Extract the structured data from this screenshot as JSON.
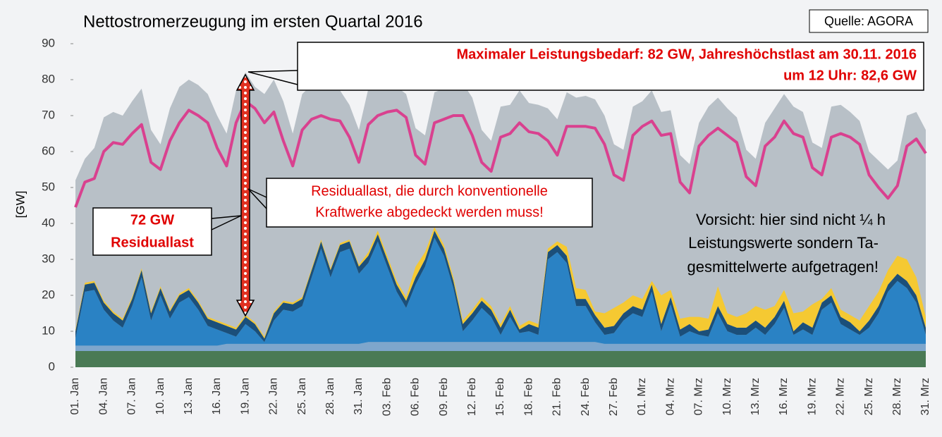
{
  "chart_data": {
    "type": "stacked_area",
    "title": "Nettostromerzeugung im ersten Quartal 2016",
    "source": "Quelle: AGORA",
    "y_label": "[GW]",
    "categories": [
      "01. Jan",
      null,
      null,
      "04. Jan",
      null,
      null,
      "07. Jan",
      null,
      null,
      "10. Jan",
      null,
      null,
      "13. Jan",
      null,
      null,
      "16. Jan",
      null,
      null,
      "19. Jan",
      null,
      null,
      "22. Jan",
      null,
      null,
      "25. Jan",
      null,
      null,
      "28. Jan",
      null,
      null,
      "31. Jan",
      null,
      null,
      "03. Feb",
      null,
      null,
      "06. Feb",
      null,
      null,
      "09. Feb",
      null,
      null,
      "12. Feb",
      null,
      null,
      "15. Feb",
      null,
      null,
      "18. Feb",
      null,
      null,
      "21. Feb",
      null,
      null,
      "24. Feb",
      null,
      null,
      "27. Feb",
      null,
      null,
      "01. Mrz",
      null,
      null,
      "04. Mrz",
      null,
      null,
      "07. Mrz",
      null,
      null,
      "10. Mrz",
      null,
      null,
      "13. Mrz",
      null,
      null,
      "16. Mrz",
      null,
      null,
      "19. Mrz",
      null,
      null,
      "22. Mrz",
      null,
      null,
      "25. Mrz",
      null,
      null,
      "28. Mrz",
      null,
      null,
      "31. Mrz"
    ],
    "load": {
      "color": "#b8c0c7",
      "values": [
        52,
        58,
        61,
        69.5,
        71,
        70,
        74,
        77.5,
        66,
        62,
        72,
        78,
        80,
        78.5,
        76,
        70,
        65,
        77,
        82,
        78,
        76,
        80,
        74,
        65,
        76,
        78.5,
        78,
        77.5,
        77,
        73,
        66,
        77.5,
        78.5,
        80.5,
        78,
        76,
        66.5,
        64.5,
        76.5,
        77.5,
        79,
        79,
        75,
        66,
        63,
        72.5,
        73,
        77,
        73.5,
        73,
        72,
        69,
        76.5,
        75,
        75.5,
        74.5,
        70,
        62,
        60.5,
        72.5,
        74,
        77,
        71,
        71.5,
        59,
        56.5,
        68,
        72.5,
        75,
        72,
        69.5,
        60.5,
        58,
        68,
        72,
        76,
        72.5,
        71,
        62.5,
        61,
        72.5,
        73,
        71,
        68.5,
        60,
        57.5,
        55,
        57.5,
        70,
        71,
        66
      ]
    },
    "series": [
      {
        "color": "#4a7a55",
        "values": [
          4.5,
          4.5,
          4.5,
          4.5,
          4.5,
          4.5,
          4.5,
          4.5,
          4.5,
          4.5,
          4.5,
          4.5,
          4.5,
          4.5,
          4.5,
          4.5,
          4.5,
          4.5,
          4.5,
          4.5,
          4.5,
          4.5,
          4.5,
          4.5,
          4.5,
          4.5,
          4.5,
          4.5,
          4.5,
          4.5,
          4.5,
          4.5,
          4.5,
          4.5,
          4.5,
          4.5,
          4.5,
          4.5,
          4.5,
          4.5,
          4.5,
          4.5,
          4.5,
          4.5,
          4.5,
          4.5,
          4.5,
          4.5,
          4.5,
          4.5,
          4.5,
          4.5,
          4.5,
          4.5,
          4.5,
          4.5,
          4.5,
          4.5,
          4.5,
          4.5,
          4.5,
          4.5,
          4.5,
          4.5,
          4.5,
          4.5,
          4.5,
          4.5,
          4.5,
          4.5,
          4.5,
          4.5,
          4.5,
          4.5,
          4.5,
          4.5,
          4.5,
          4.5,
          4.5,
          4.5,
          4.5,
          4.5,
          4.5,
          4.5,
          4.5,
          4.5,
          4.5,
          4.5,
          4.5,
          4.5,
          4.5
        ]
      },
      {
        "color": "#7ea6cc",
        "values": [
          1.5,
          1.5,
          1.5,
          1.5,
          1.5,
          1.5,
          1.5,
          1.5,
          1.5,
          1.5,
          1.5,
          1.5,
          1.5,
          1.5,
          1.5,
          1.5,
          2,
          2,
          2,
          2,
          2,
          2,
          2,
          2,
          2,
          2,
          2,
          2,
          2,
          2,
          2,
          2.5,
          2.5,
          2.5,
          2.5,
          2.5,
          2.5,
          2.5,
          2.5,
          2.5,
          2.5,
          2.5,
          2.5,
          2.5,
          2.5,
          2.5,
          2.5,
          2.5,
          2.5,
          2.5,
          2.5,
          2.5,
          2.5,
          2.5,
          2.5,
          2.5,
          2,
          2,
          2,
          2,
          2,
          2,
          2,
          2,
          2,
          2,
          2,
          2,
          2,
          2,
          2,
          2,
          2,
          2,
          2,
          2,
          2,
          2,
          2,
          2,
          2,
          2,
          2,
          2,
          2,
          2,
          2,
          2,
          2,
          2,
          2
        ]
      },
      {
        "color": "#2a82c4",
        "values": [
          2,
          15,
          15.5,
          10,
          7,
          5,
          11,
          19,
          7,
          14,
          7.5,
          12,
          13.5,
          10,
          5.5,
          4.5,
          3,
          2,
          5.5,
          3.5,
          0.5,
          6.5,
          9.5,
          9,
          10.5,
          18.5,
          26.5,
          18.5,
          25.5,
          26.5,
          19.5,
          22,
          28,
          21,
          14,
          9.5,
          16,
          21,
          29,
          24,
          15,
          3,
          6,
          9.5,
          7,
          2,
          7,
          2.5,
          3,
          2,
          23,
          25,
          22,
          10,
          10,
          5.5,
          2.5,
          3,
          6.5,
          8.5,
          7.5,
          14.5,
          3.5,
          11,
          2,
          3.5,
          2.5,
          2,
          8.5,
          3.5,
          2.5,
          2.5,
          4.5,
          2.5,
          5.5,
          10,
          2.5,
          4,
          2.5,
          9.5,
          11.5,
          5.5,
          4,
          2.5,
          4.5,
          8.5,
          14.5,
          17.5,
          15.5,
          11.5,
          2.5
        ]
      },
      {
        "color": "#1b4f7a",
        "values": [
          2,
          2,
          2,
          2,
          2,
          2,
          2,
          2,
          2,
          2,
          2,
          2,
          2,
          2,
          2,
          2,
          2,
          2,
          2,
          2,
          1,
          2,
          2,
          2,
          2,
          2,
          2,
          2,
          2,
          2,
          2,
          2,
          2,
          2,
          2,
          2,
          2,
          2,
          2,
          2,
          2,
          2,
          2,
          2,
          2,
          2,
          2,
          1,
          2,
          2,
          2,
          2,
          2,
          2,
          2,
          2,
          2,
          2,
          2,
          2,
          2,
          2,
          2,
          2,
          2,
          2,
          1,
          2,
          2,
          2,
          2,
          2,
          2,
          2,
          2,
          2,
          1,
          2,
          2,
          2,
          2,
          2,
          2,
          1,
          2,
          2,
          2,
          2,
          2,
          2,
          2
        ]
      },
      {
        "color": "#f5c932",
        "values": [
          0.5,
          0.5,
          0.5,
          0.5,
          0.5,
          0.5,
          0.5,
          0.5,
          0.5,
          0.5,
          0.5,
          0.5,
          0.5,
          0.5,
          0.5,
          0.5,
          0.5,
          0.5,
          0.5,
          0.5,
          0.5,
          0.5,
          0.5,
          0.5,
          0.5,
          0.5,
          0.5,
          0.5,
          0.5,
          0.5,
          0.5,
          1,
          1,
          1,
          1,
          1,
          3,
          2,
          1,
          1,
          1,
          1,
          1,
          1,
          1,
          1,
          1,
          1,
          1,
          1,
          1,
          1,
          2.5,
          3,
          2.5,
          1,
          4,
          5,
          3,
          3,
          3,
          1,
          8,
          2,
          3,
          2,
          4,
          3,
          5.5,
          3,
          3,
          4,
          4,
          5,
          3,
          3,
          5,
          3,
          6.5,
          1,
          2,
          2,
          2,
          3,
          4,
          4,
          4,
          5,
          6,
          5,
          3
        ]
      }
    ],
    "line": {
      "color": "#d9418f",
      "values": [
        44.5,
        51.5,
        52.5,
        60,
        62.5,
        62,
        65,
        67.5,
        57,
        55,
        63,
        68,
        71.5,
        70,
        68,
        61,
        56,
        68,
        74,
        72,
        68,
        71,
        63,
        56,
        66,
        69,
        70,
        69,
        68.5,
        64,
        57,
        67.5,
        70,
        71,
        71.5,
        69.5,
        59,
        56.5,
        68,
        69,
        70,
        70,
        64.5,
        57,
        54.5,
        64,
        65,
        68,
        65.5,
        65,
        63,
        59,
        67,
        67,
        67,
        66.5,
        62,
        53.5,
        52,
        64.5,
        67,
        68.5,
        64.5,
        65,
        51.5,
        48.5,
        61.5,
        64.5,
        66.5,
        64.5,
        62.5,
        53,
        50.5,
        61.5,
        64,
        68.5,
        65,
        64,
        55.5,
        53.5,
        64,
        65,
        64,
        62,
        53.5,
        50,
        47,
        50.5,
        61.5,
        63.5,
        59.5
      ]
    },
    "ylim": [
      0,
      90
    ],
    "yticks": [
      0,
      10,
      20,
      30,
      40,
      50,
      60,
      70,
      80,
      90
    ],
    "annotations": [
      {
        "lines": [
          "Maximaler Leistungsbedarf: 82 GW, Jahreshöchstlast am 30.11. 2016",
          "um 12 Uhr: 82,6 GW"
        ]
      },
      {
        "lines": [
          "Residuallast, die durch konventionelle",
          "Kraftwerke abgedeckt werden muss!"
        ]
      },
      {
        "lines": [
          "72 GW",
          "Residuallast"
        ]
      },
      {
        "lines": [
          "Vorsicht: hier sind nicht ¼ h",
          "Leistungswerte sondern Ta-",
          "gesmittelwerte aufgetragen!"
        ]
      }
    ]
  }
}
